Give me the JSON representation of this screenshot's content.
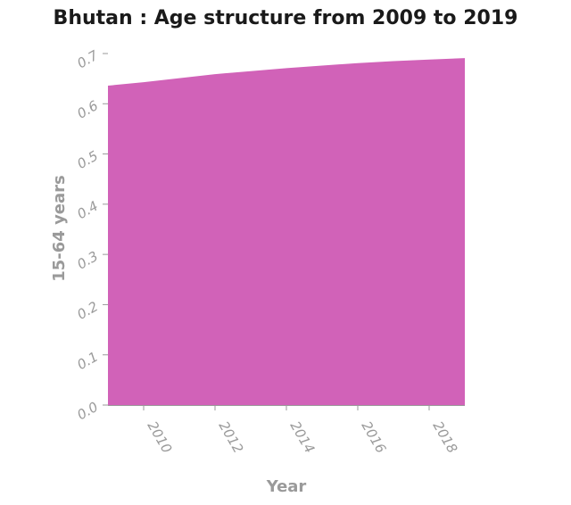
{
  "chart_data": {
    "type": "area",
    "title": "Bhutan : Age structure from 2009 to 2019",
    "xlabel": "Year",
    "ylabel": "15-64 years",
    "x": [
      2009,
      2010,
      2011,
      2012,
      2013,
      2014,
      2015,
      2016,
      2017,
      2018,
      2019
    ],
    "series": [
      {
        "values": [
          0.636,
          0.643,
          0.651,
          0.659,
          0.665,
          0.671,
          0.676,
          0.681,
          0.685,
          0.688,
          0.691
        ]
      }
    ],
    "xlim": [
      2009,
      2019
    ],
    "ylim": [
      0,
      0.7
    ],
    "xticks": [
      "2010",
      "2012",
      "2014",
      "2016",
      "2018"
    ],
    "yticks": [
      "0.0",
      "0.1",
      "0.2",
      "0.3",
      "0.4",
      "0.5",
      "0.6",
      "0.7"
    ],
    "grid": false,
    "colors": {
      "fill": "#d162b8",
      "axis": "#9a9a9a",
      "title": "#1a1a1a"
    }
  }
}
